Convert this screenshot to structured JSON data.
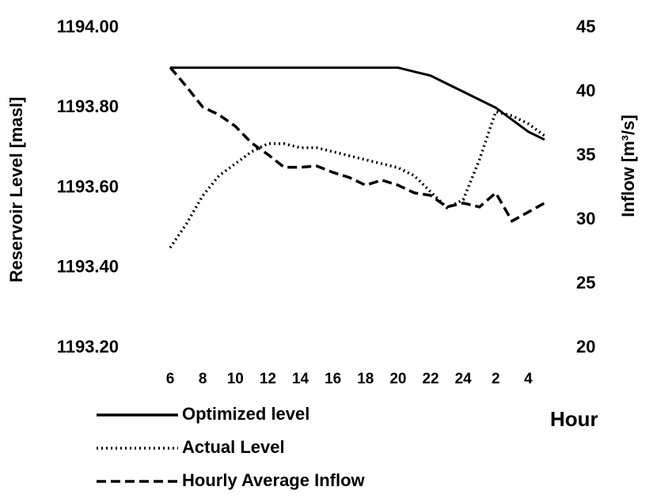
{
  "chart_data": {
    "type": "line",
    "x_label": "Hour",
    "y_label": "Reservoir Level [masl]",
    "y2_label": "Inflow [m³/s]",
    "categories": [
      "6",
      null,
      "8",
      null,
      "10",
      null,
      "12",
      null,
      "14",
      null,
      "16",
      null,
      "18",
      null,
      "20",
      null,
      "22",
      null,
      "24",
      null,
      "2",
      null,
      "4",
      null
    ],
    "ylim": [
      1193.2,
      1194.0
    ],
    "yticks": [
      {
        "value": 1193.2,
        "label": "1193.20"
      },
      {
        "value": 1193.4,
        "label": "1193.40"
      },
      {
        "value": 1193.6,
        "label": "1193.60"
      },
      {
        "value": 1193.8,
        "label": "1193.80"
      },
      {
        "value": 1194.0,
        "label": "1194.00"
      }
    ],
    "y2lim": [
      20,
      45
    ],
    "y2ticks": [
      20,
      25,
      30,
      35,
      40,
      45
    ],
    "grid": false,
    "series": [
      {
        "name": "Optimized level",
        "color": "#000000",
        "style": "solid",
        "axis": "y",
        "values": [
          1193.9,
          1193.9,
          1193.9,
          1193.9,
          1193.9,
          1193.9,
          1193.9,
          1193.9,
          1193.9,
          1193.9,
          1193.9,
          1193.9,
          1193.9,
          1193.9,
          1193.9,
          1193.89,
          1193.88,
          1193.86,
          1193.84,
          1193.82,
          1193.8,
          1193.77,
          1193.74,
          1193.72
        ]
      },
      {
        "name": "Actual Level",
        "color": "#000000",
        "style": "dotted",
        "axis": "y",
        "values": [
          1193.45,
          1193.51,
          1193.58,
          1193.63,
          1193.66,
          1193.69,
          1193.71,
          1193.71,
          1193.7,
          1193.7,
          1193.69,
          1193.68,
          1193.67,
          1193.66,
          1193.65,
          1193.63,
          1193.59,
          1193.55,
          1193.57,
          1193.67,
          1193.79,
          1193.78,
          1193.76,
          1193.73
        ]
      },
      {
        "name": "Hourly Average Inflow",
        "color": "#000000",
        "style": "dashed",
        "axis": "y2",
        "values": [
          41.9,
          40.4,
          38.8,
          38.2,
          37.3,
          36.0,
          35.1,
          34.1,
          34.1,
          34.2,
          33.7,
          33.3,
          32.7,
          33.1,
          32.7,
          32.1,
          31.9,
          31.0,
          31.3,
          31.0,
          32.1,
          29.9,
          30.6,
          31.3
        ]
      }
    ]
  }
}
